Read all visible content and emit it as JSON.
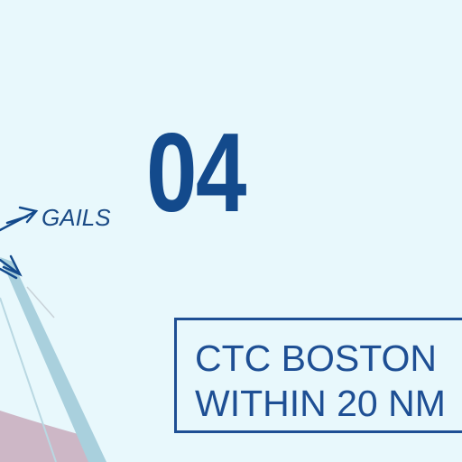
{
  "chart": {
    "colors": {
      "background": "#e8f8fc",
      "ink_blue": "#134a8c",
      "route_light_blue": "#a8cfdc",
      "terrain_mauve": "#c9b4c4"
    },
    "fix": {
      "name": "GAILS",
      "symbol": "arrow-fix-icon"
    },
    "route_number": "04",
    "ctc_box": {
      "line1": "CTC BOSTON",
      "line2": "WITHIN 20 NM"
    }
  }
}
